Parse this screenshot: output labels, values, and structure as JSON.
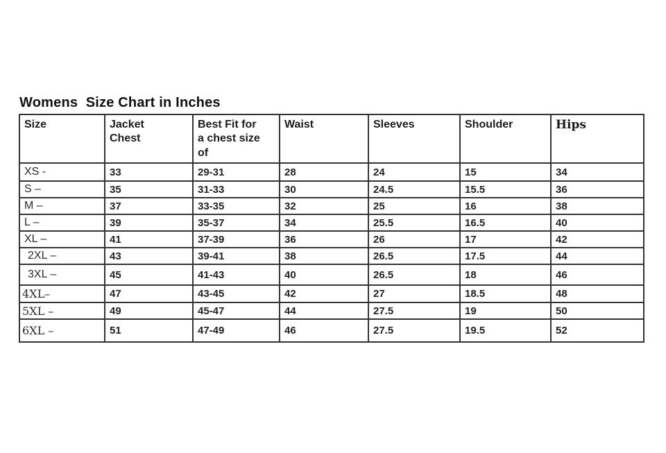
{
  "page": {
    "title": "Womens  Size Chart in Inches"
  },
  "table": {
    "columns": [
      "Size",
      "Jacket\nChest",
      "Best Fit for\na chest size\nof",
      "Waist",
      "Sleeves",
      "Shoulder",
      "Hips"
    ],
    "rows": [
      [
        "XS -",
        "33",
        "29-31",
        "28",
        "24",
        "15",
        "34"
      ],
      [
        "S –",
        "35",
        "31-33",
        "30",
        "24.5",
        "15.5",
        "36"
      ],
      [
        "M –",
        "37",
        "33-35",
        "32",
        "25",
        "16",
        "38"
      ],
      [
        "L –",
        "39",
        "35-37",
        "34",
        "25.5",
        "16.5",
        "40"
      ],
      [
        "XL –",
        "41",
        "37-39",
        "36",
        "26",
        "17",
        "42"
      ],
      [
        "2XL –",
        "43",
        "39-41",
        "38",
        "26.5",
        "17.5",
        "44"
      ],
      [
        "3XL –",
        "45",
        "41-43",
        "40",
        "26.5",
        "18",
        "46"
      ],
      [
        "4XL–",
        "47",
        "43-45",
        "42",
        "27",
        "18.5",
        "48"
      ],
      [
        "5XL –",
        "49",
        "45-47",
        "44",
        "27.5",
        "19",
        "50"
      ],
      [
        "6XL –",
        "51",
        "47-49",
        "46",
        "27.5",
        "19.5",
        "52"
      ]
    ]
  },
  "colors": {
    "text": "#1f1f1f",
    "border": "#333333",
    "background": "#ffffff"
  }
}
